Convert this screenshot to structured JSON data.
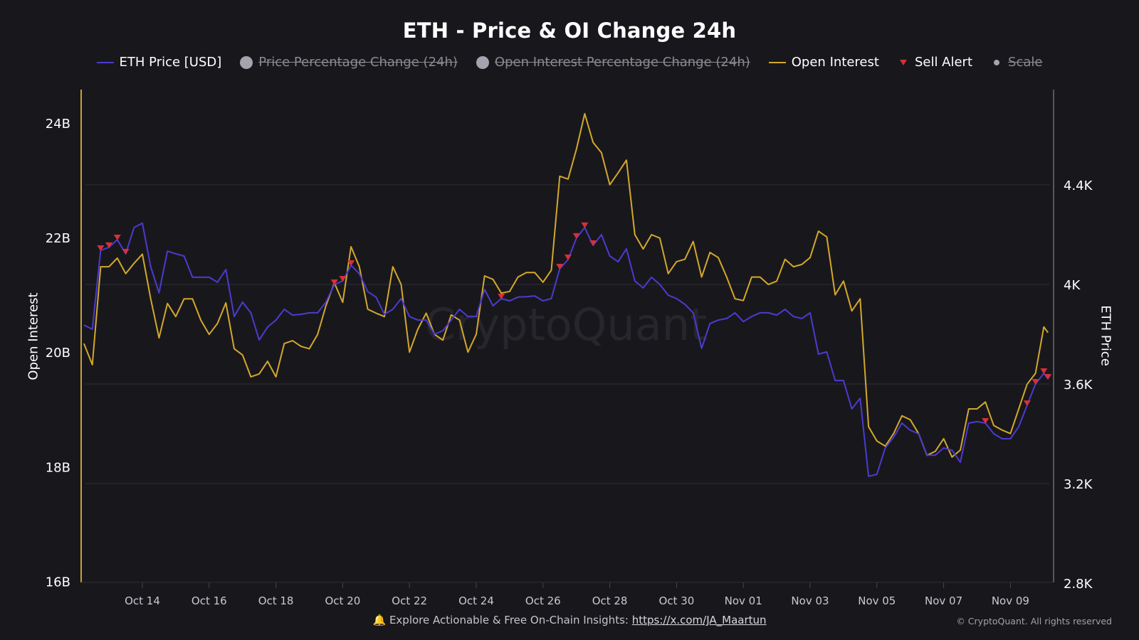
{
  "chart_data": {
    "type": "line",
    "title": "ETH - Price & OI Change 24h",
    "legend": [
      {
        "name": "ETH Price [USD]",
        "color": "#4b3bd0",
        "symbol": "line",
        "visible": true
      },
      {
        "name": "Price Percentage Change (24h)",
        "color": "#a4a4ae",
        "symbol": "circle",
        "visible": false
      },
      {
        "name": "Open Interest Percentage Change (24h)",
        "color": "#a4a4ae",
        "symbol": "circle",
        "visible": false
      },
      {
        "name": "Open Interest",
        "color": "#d4a72c",
        "symbol": "line",
        "visible": true
      },
      {
        "name": "Sell Alert",
        "color": "#d6303a",
        "symbol": "triangle-down",
        "visible": true
      },
      {
        "name": "Scale",
        "color": "#a4a4ae",
        "symbol": "dot",
        "visible": false
      }
    ],
    "legend_position": "top-center",
    "y_left": {
      "label": "Open Interest",
      "range": [
        16,
        24
      ],
      "unit": "B",
      "ticks": [
        16,
        18,
        20,
        22,
        24
      ],
      "tick_labels": [
        "16B",
        "18B",
        "20B",
        "22B",
        "24B"
      ]
    },
    "y_right": {
      "label": "ETH Price",
      "range": [
        2800,
        4400
      ],
      "ticks": [
        2800,
        3200,
        3600,
        4000,
        4400
      ],
      "tick_labels": [
        "2.8K",
        "3.2K",
        "3.6K",
        "4K",
        "4.4K"
      ]
    },
    "x_ticks": [
      "Oct 14",
      "Oct 16",
      "Oct 18",
      "Oct 20",
      "Oct 22",
      "Oct 24",
      "Oct 26",
      "Oct 28",
      "Oct 30",
      "Nov 01",
      "Nov 03",
      "Nov 05",
      "Nov 07",
      "Nov 09"
    ],
    "grid": "horizontal",
    "x": [
      "Oct 12 06:00",
      "Oct 12 12:00",
      "Oct 12 18:00",
      "Oct 13 00:00",
      "Oct 13 06:00",
      "Oct 13 12:00",
      "Oct 13 18:00",
      "Oct 14 00:00",
      "Oct 14 06:00",
      "Oct 14 12:00",
      "Oct 14 18:00",
      "Oct 15 00:00",
      "Oct 15 06:00",
      "Oct 15 12:00",
      "Oct 15 18:00",
      "Oct 16 00:00",
      "Oct 16 06:00",
      "Oct 16 12:00",
      "Oct 16 18:00",
      "Oct 17 00:00",
      "Oct 17 06:00",
      "Oct 17 12:00",
      "Oct 17 18:00",
      "Oct 18 00:00",
      "Oct 18 06:00",
      "Oct 18 12:00",
      "Oct 18 18:00",
      "Oct 19 00:00",
      "Oct 19 06:00",
      "Oct 19 12:00",
      "Oct 19 18:00",
      "Oct 20 00:00",
      "Oct 20 06:00",
      "Oct 20 12:00",
      "Oct 20 18:00",
      "Oct 21 00:00",
      "Oct 21 06:00",
      "Oct 21 12:00",
      "Oct 21 18:00",
      "Oct 22 00:00",
      "Oct 22 06:00",
      "Oct 22 12:00",
      "Oct 22 18:00",
      "Oct 23 00:00",
      "Oct 23 06:00",
      "Oct 23 12:00",
      "Oct 23 18:00",
      "Oct 24 00:00",
      "Oct 24 06:00",
      "Oct 24 12:00",
      "Oct 24 18:00",
      "Oct 25 00:00",
      "Oct 25 06:00",
      "Oct 25 12:00",
      "Oct 25 18:00",
      "Oct 26 00:00",
      "Oct 26 06:00",
      "Oct 26 12:00",
      "Oct 26 18:00",
      "Oct 27 00:00",
      "Oct 27 06:00",
      "Oct 27 12:00",
      "Oct 27 18:00",
      "Oct 28 00:00",
      "Oct 28 06:00",
      "Oct 28 12:00",
      "Oct 28 18:00",
      "Oct 29 00:00",
      "Oct 29 06:00",
      "Oct 29 12:00",
      "Oct 29 18:00",
      "Oct 30 00:00",
      "Oct 30 06:00",
      "Oct 30 12:00",
      "Oct 30 18:00",
      "Oct 31 00:00",
      "Oct 31 06:00",
      "Oct 31 12:00",
      "Oct 31 18:00",
      "Nov 01 00:00",
      "Nov 01 06:00",
      "Nov 01 12:00",
      "Nov 01 18:00",
      "Nov 02 00:00",
      "Nov 02 06:00",
      "Nov 02 12:00",
      "Nov 02 18:00",
      "Nov 03 00:00",
      "Nov 03 06:00",
      "Nov 03 12:00",
      "Nov 03 18:00",
      "Nov 04 00:00",
      "Nov 04 06:00",
      "Nov 04 12:00",
      "Nov 04 18:00",
      "Nov 05 00:00",
      "Nov 05 06:00",
      "Nov 05 12:00",
      "Nov 05 18:00",
      "Nov 06 00:00",
      "Nov 06 06:00",
      "Nov 06 12:00",
      "Nov 06 18:00",
      "Nov 07 00:00",
      "Nov 07 06:00",
      "Nov 07 12:00",
      "Nov 07 18:00",
      "Nov 08 00:00",
      "Nov 08 06:00",
      "Nov 08 12:00",
      "Nov 08 18:00",
      "Nov 09 00:00",
      "Nov 09 06:00",
      "Nov 09 12:00",
      "Nov 09 18:00",
      "Nov 10 00:00",
      "Nov 10 03:00"
    ],
    "series": [
      {
        "name": "ETH Price [USD]",
        "axis": "right",
        "color": "#4b3bd0",
        "values": [
          3837,
          3820,
          4137,
          4149,
          4180,
          4123,
          4229,
          4246,
          4071,
          3966,
          4134,
          4123,
          4114,
          4029,
          4029,
          4029,
          4009,
          4060,
          3871,
          3929,
          3886,
          3777,
          3829,
          3857,
          3900,
          3877,
          3880,
          3886,
          3886,
          3929,
          4000,
          4014,
          4077,
          4043,
          3971,
          3949,
          3880,
          3900,
          3943,
          3871,
          3857,
          3857,
          3800,
          3814,
          3857,
          3900,
          3871,
          3871,
          3980,
          3914,
          3943,
          3934,
          3949,
          3951,
          3954,
          3934,
          3943,
          4063,
          4100,
          4186,
          4229,
          4157,
          4200,
          4114,
          4091,
          4143,
          4014,
          3986,
          4029,
          4000,
          3957,
          3943,
          3920,
          3886,
          3743,
          3843,
          3857,
          3863,
          3886,
          3851,
          3871,
          3886,
          3886,
          3877,
          3900,
          3871,
          3863,
          3886,
          3720,
          3729,
          3614,
          3614,
          3500,
          3543,
          3229,
          3237,
          3343,
          3386,
          3443,
          3414,
          3400,
          3314,
          3314,
          3343,
          3334,
          3286,
          3443,
          3449,
          3443,
          3400,
          3380,
          3380,
          3429,
          3514,
          3600,
          3643,
          3620
        ]
      },
      {
        "name": "Open Interest",
        "axis": "left",
        "color": "#d4a72c",
        "values": [
          20.15,
          19.78,
          21.49,
          21.49,
          21.64,
          21.37,
          21.55,
          21.71,
          20.93,
          20.25,
          20.85,
          20.62,
          20.93,
          20.93,
          20.56,
          20.31,
          20.5,
          20.86,
          20.06,
          19.95,
          19.57,
          19.62,
          19.84,
          19.57,
          20.15,
          20.2,
          20.1,
          20.06,
          20.31,
          20.81,
          21.21,
          20.87,
          21.84,
          21.49,
          20.75,
          20.68,
          20.62,
          21.49,
          21.18,
          20.0,
          20.4,
          20.68,
          20.31,
          20.21,
          20.65,
          20.56,
          20.0,
          20.31,
          21.33,
          21.27,
          21.03,
          21.06,
          21.31,
          21.39,
          21.39,
          21.22,
          21.43,
          23.07,
          23.02,
          23.54,
          24.16,
          23.66,
          23.48,
          22.92,
          23.13,
          23.35,
          22.05,
          21.8,
          22.05,
          21.99,
          21.37,
          21.58,
          21.62,
          21.93,
          21.31,
          21.74,
          21.65,
          21.31,
          20.93,
          20.9,
          21.31,
          21.31,
          21.18,
          21.24,
          21.62,
          21.49,
          21.53,
          21.65,
          22.11,
          22.01,
          21.0,
          21.24,
          20.72,
          20.93,
          18.7,
          18.45,
          18.36,
          18.58,
          18.89,
          18.82,
          18.58,
          18.2,
          18.27,
          18.49,
          18.17,
          18.29,
          19.01,
          19.01,
          19.13,
          18.72,
          18.64,
          18.58,
          19.01,
          19.44,
          19.63,
          20.44,
          20.34
        ]
      }
    ],
    "sell_alerts": [
      "Oct 12 18:00",
      "Oct 13 00:00",
      "Oct 13 06:00",
      "Oct 13 12:00",
      "Oct 19 18:00",
      "Oct 20 00:00",
      "Oct 20 06:00",
      "Oct 24 18:00",
      "Oct 26 12:00",
      "Oct 26 18:00",
      "Oct 27 00:00",
      "Oct 27 06:00",
      "Oct 27 12:00",
      "Nov 08 06:00",
      "Nov 09 12:00",
      "Nov 09 18:00",
      "Nov 10 00:00",
      "Nov 10 03:00"
    ]
  },
  "watermark": "CryptoQuant",
  "footer": {
    "text": "Explore Actionable & Free On-Chain Insights: ",
    "link": "https://x.com/JA_Maartun",
    "icon": "bell-icon",
    "copyright": "© CryptoQuant. All rights reserved"
  }
}
